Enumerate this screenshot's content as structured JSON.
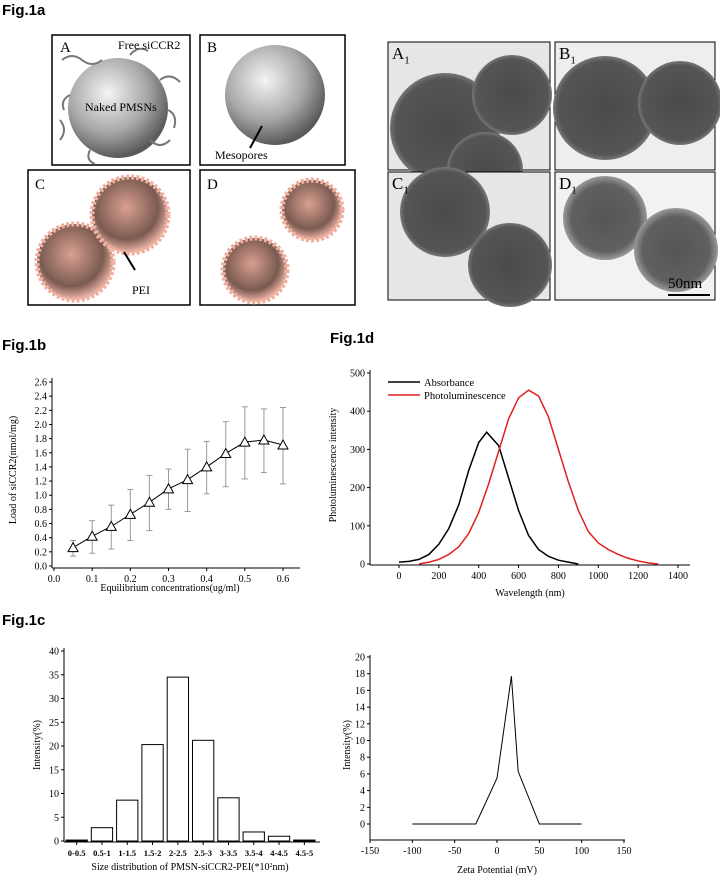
{
  "figure_labels": {
    "a": "Fig.1a",
    "b": "Fig.1b",
    "c": "Fig.1c",
    "d": "Fig.1d"
  },
  "schematic": {
    "A": {
      "letter": "A",
      "free_label": "Free siCCR2",
      "naked_label": "Naked PMSNs"
    },
    "B": {
      "letter": "B",
      "pore_label": "Mesopores"
    },
    "C": {
      "letter": "C",
      "pei_label": "PEI"
    },
    "D": {
      "letter": "D"
    }
  },
  "tem": {
    "panels": [
      {
        "letter": "A",
        "sub": "1"
      },
      {
        "letter": "B",
        "sub": "1"
      },
      {
        "letter": "C",
        "sub": "1"
      },
      {
        "letter": "D",
        "sub": "1"
      }
    ],
    "scale_bar": "50nm"
  },
  "chart_data": [
    {
      "id": "fig1b",
      "type": "line",
      "xlabel": "Equilibrium concentrations(ug/ml)",
      "ylabel": "Load of siCCR2(nmol/mg)",
      "xlim": [
        0.0,
        0.6
      ],
      "ylim": [
        0.0,
        2.6
      ],
      "xticks": [
        "0.0",
        "0.1",
        "0.2",
        "0.3",
        "0.4",
        "0.5",
        "0.6"
      ],
      "yticks": [
        "0.0",
        "0.2",
        "0.4",
        "0.6",
        "0.8",
        "1.0",
        "1.2",
        "1.4",
        "1.6",
        "1.8",
        "2.0",
        "2.2",
        "2.4",
        "2.6"
      ],
      "marker": "open-triangle",
      "x": [
        0.05,
        0.1,
        0.15,
        0.2,
        0.25,
        0.3,
        0.35,
        0.4,
        0.45,
        0.5,
        0.55,
        0.6
      ],
      "y": [
        0.26,
        0.42,
        0.56,
        0.73,
        0.9,
        1.09,
        1.22,
        1.4,
        1.59,
        1.75,
        1.78,
        1.71
      ],
      "err_upper": [
        0.36,
        0.64,
        0.86,
        1.08,
        1.28,
        1.37,
        1.65,
        1.76,
        2.04,
        2.25,
        2.22,
        2.24
      ],
      "err_lower": [
        0.14,
        0.18,
        0.24,
        0.36,
        0.5,
        0.8,
        0.77,
        1.02,
        1.12,
        1.23,
        1.32,
        1.16
      ]
    },
    {
      "id": "fig1d",
      "type": "line",
      "xlabel": "Wavelength (nm)",
      "ylabel": "Photoluminescence intensity",
      "xlim": [
        -150,
        1400
      ],
      "ylim": [
        0,
        500
      ],
      "xticks": [
        "0",
        "200",
        "400",
        "600",
        "800",
        "1000",
        "1200",
        "1400"
      ],
      "yticks": [
        "0",
        "100",
        "200",
        "300",
        "400",
        "500"
      ],
      "legend_placement": "top-left",
      "series": [
        {
          "name": "Absorbance",
          "color": "#000000",
          "x": [
            0,
            50,
            100,
            150,
            200,
            250,
            300,
            350,
            400,
            440,
            500,
            550,
            600,
            650,
            700,
            750,
            800,
            850,
            900
          ],
          "y": [
            5,
            7,
            12,
            25,
            52,
            93,
            155,
            245,
            318,
            345,
            310,
            225,
            140,
            75,
            38,
            20,
            10,
            5,
            0
          ]
        },
        {
          "name": "Photoluminescence",
          "color": "#e02020",
          "x": [
            100,
            150,
            200,
            250,
            300,
            350,
            400,
            450,
            500,
            550,
            600,
            650,
            700,
            750,
            800,
            850,
            900,
            950,
            1000,
            1050,
            1100,
            1150,
            1200,
            1250,
            1300
          ],
          "y": [
            0,
            5,
            12,
            25,
            45,
            80,
            135,
            210,
            295,
            380,
            435,
            455,
            440,
            385,
            300,
            215,
            140,
            85,
            55,
            38,
            25,
            15,
            8,
            3,
            0
          ]
        }
      ]
    },
    {
      "id": "fig1c-left",
      "type": "bar",
      "xlabel": "Size distribution of PMSN-siCCR2-PEI(*10",
      "xlabel_sup": "2",
      "xlabel_end": "nm)",
      "ylabel": "Intensity(%)",
      "ylim": [
        0,
        40
      ],
      "yticks": [
        "0",
        "5",
        "10",
        "15",
        "20",
        "25",
        "30",
        "35",
        "40"
      ],
      "categories": [
        "0-0.5",
        "0.5-1",
        "1-1.5",
        "1.5-2",
        "2-2.5",
        "2.5-3",
        "3-3.5",
        "3.5-4",
        "4-4.5",
        "4.5-5"
      ],
      "values": [
        0.2,
        2.8,
        8.6,
        20.3,
        34.5,
        21.2,
        9.1,
        1.9,
        1.0,
        0.2
      ]
    },
    {
      "id": "fig1c-right",
      "type": "line",
      "xlabel": "Zeta Potential (mV)",
      "ylabel": "Intensity(%)",
      "xlim": [
        -150,
        150
      ],
      "ylim": [
        -2,
        20
      ],
      "xticks": [
        "-150",
        "-100",
        "-50",
        "0",
        "50",
        "100",
        "150"
      ],
      "yticks": [
        "0",
        "2",
        "4",
        "6",
        "8",
        "10",
        "12",
        "14",
        "16",
        "18",
        "20"
      ],
      "x": [
        -100,
        -25,
        0,
        17,
        25,
        50,
        100
      ],
      "y": [
        0,
        0,
        5.5,
        17.7,
        6.3,
        0,
        0
      ]
    }
  ]
}
